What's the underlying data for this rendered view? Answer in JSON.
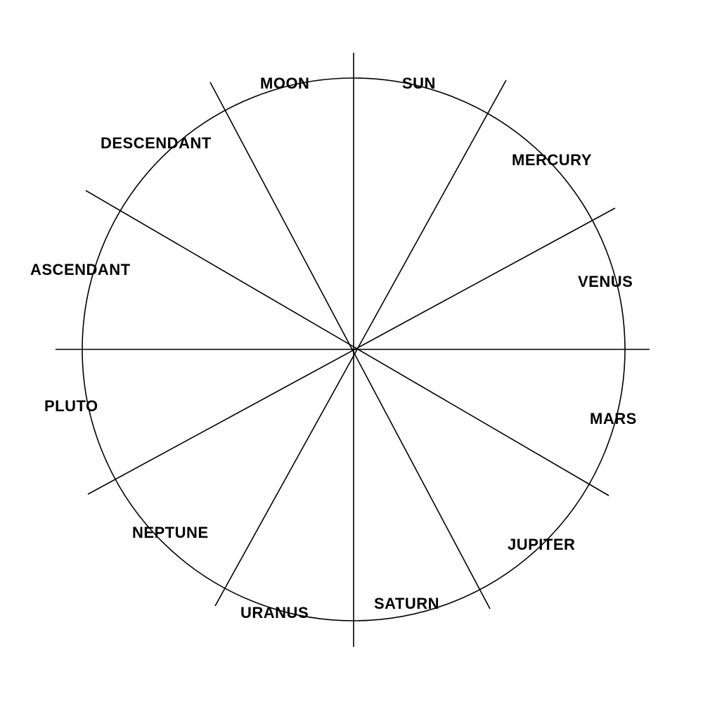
{
  "wheel": {
    "segment_count": 12,
    "line_color": "#000000",
    "background": "#ffffff",
    "segments": [
      {
        "label": "SUN"
      },
      {
        "label": "MERCURY"
      },
      {
        "label": "VENUS"
      },
      {
        "label": "MARS"
      },
      {
        "label": "JUPITER"
      },
      {
        "label": "SATURN"
      },
      {
        "label": "URANUS"
      },
      {
        "label": "NEPTUNE"
      },
      {
        "label": "PLUTO"
      },
      {
        "label": "ASCENDANT"
      },
      {
        "label": "DESCENDANT"
      },
      {
        "label": "MOON"
      }
    ]
  }
}
